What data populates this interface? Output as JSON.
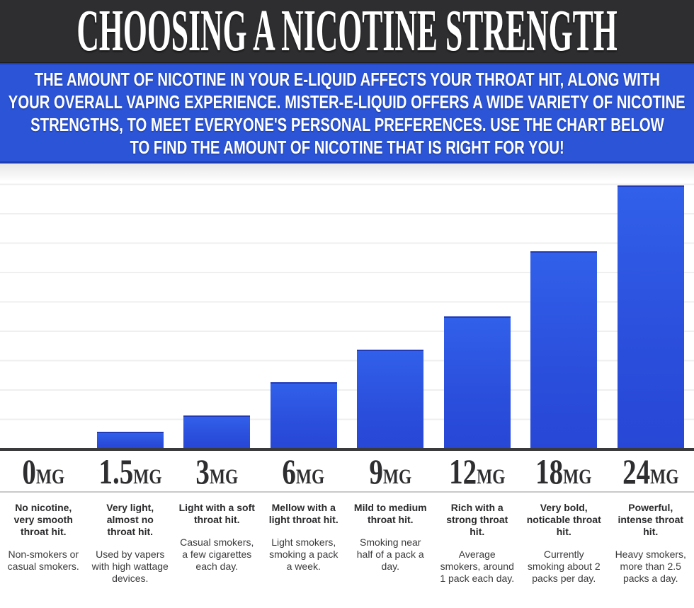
{
  "header": {
    "title": "CHOOSING A NICOTINE STRENGTH"
  },
  "banner": {
    "lines": [
      "THE AMOUNT OF NICOTINE IN YOUR E-LIQUID AFFECTS YOUR THROAT HIT, ALONG  WITH",
      "YOUR OVERALL VAPING EXPERIENCE. MISTER-E-LIQUID OFFERS A WIDE VARIETY OF NICOTINE",
      "STRENGTHS, TO MEET EVERYONE'S PERSONAL PREFERENCES. USE THE CHART BELOW",
      "TO FIND THE AMOUNT OF NICOTINE THAT IS RIGHT FOR YOU!"
    ]
  },
  "chart_data": {
    "type": "bar",
    "categories": [
      "0MG",
      "1.5MG",
      "3MG",
      "6MG",
      "9MG",
      "12MG",
      "18MG",
      "24MG"
    ],
    "values": [
      0,
      1.5,
      3,
      6,
      9,
      12,
      18,
      24
    ],
    "title": "",
    "xlabel": "",
    "ylabel": "",
    "ylim": [
      0,
      26
    ],
    "grid": true,
    "legend_position": "none",
    "bar_color": "#2b50dd",
    "grid_color": "#efefef"
  },
  "columns": [
    {
      "strength": "0",
      "unit": "MG",
      "throat_hit": "No nicotine, very smooth throat hit.",
      "smokers": "Non-smokers or casual smokers."
    },
    {
      "strength": "1.5",
      "unit": "MG",
      "throat_hit": "Very light, almost no throat hit.",
      "smokers": "Used by vapers with high wattage devices."
    },
    {
      "strength": "3",
      "unit": "MG",
      "throat_hit": "Light with a soft throat hit.",
      "smokers": "Casual smokers, a few cigarettes each day."
    },
    {
      "strength": "6",
      "unit": "MG",
      "throat_hit": "Mellow with a light throat hit.",
      "smokers": "Light smokers, smoking a pack a week."
    },
    {
      "strength": "9",
      "unit": "MG",
      "throat_hit": "Mild to medium throat hit.",
      "smokers": "Smoking near half of a pack a day."
    },
    {
      "strength": "12",
      "unit": "MG",
      "throat_hit": "Rich with a strong throat hit.",
      "smokers": "Average smokers, around 1 pack each day."
    },
    {
      "strength": "18",
      "unit": "MG",
      "throat_hit": "Very bold, noticable throat hit.",
      "smokers": "Currently smoking about 2 packs per day."
    },
    {
      "strength": "24",
      "unit": "MG",
      "throat_hit": "Powerful, intense throat hit.",
      "smokers": "Heavy smokers, more than 2.5 packs a day."
    }
  ],
  "colors": {
    "header_bg": "#2e2e30",
    "banner_bg": "#2b54d7",
    "bar_blue": "#2b50dd",
    "baseline": "#3a3a3c",
    "text_dark": "#2e2e31"
  }
}
